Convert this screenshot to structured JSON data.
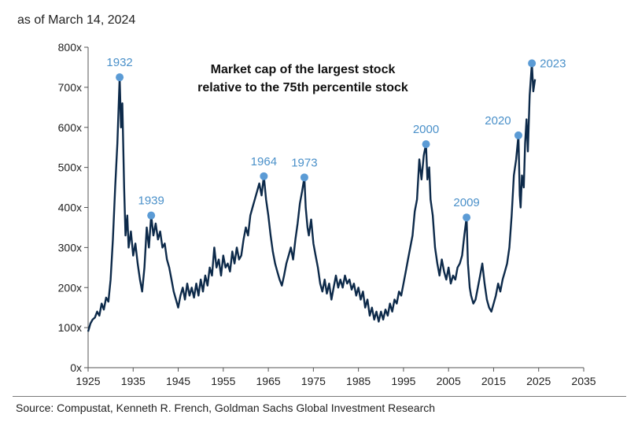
{
  "header": {
    "subtitle": "as of March 14, 2024"
  },
  "footer": {
    "source": "Source: Compustat, Kenneth R. French, Goldman Sachs Global Investment Research"
  },
  "colors": {
    "line": "#0d2a4a",
    "marker": "#5b9bd5",
    "label": "#4a90c9"
  },
  "chart_data": {
    "type": "line",
    "title": [
      "Market cap of the largest stock",
      "relative to the 75th percentile stock"
    ],
    "xlabel": "",
    "ylabel": "",
    "xlim": [
      1925,
      2035
    ],
    "ylim": [
      0,
      800
    ],
    "x_ticks": [
      1925,
      1935,
      1945,
      1955,
      1965,
      1975,
      1985,
      1995,
      2005,
      2015,
      2025,
      2035
    ],
    "y_ticks": [
      {
        "value": 0,
        "label": "0x"
      },
      {
        "value": 100,
        "label": "100x"
      },
      {
        "value": 200,
        "label": "200x"
      },
      {
        "value": 300,
        "label": "300x"
      },
      {
        "value": 400,
        "label": "400x"
      },
      {
        "value": 500,
        "label": "500x"
      },
      {
        "value": 600,
        "label": "600x"
      },
      {
        "value": 700,
        "label": "700x"
      },
      {
        "value": 800,
        "label": "800x"
      }
    ],
    "grid": false,
    "peaks": [
      {
        "label": "1932",
        "x": 1932,
        "y": 725
      },
      {
        "label": "1939",
        "x": 1939,
        "y": 380
      },
      {
        "label": "1964",
        "x": 1964,
        "y": 478
      },
      {
        "label": "1973",
        "x": 1973,
        "y": 475
      },
      {
        "label": "2000",
        "x": 2000,
        "y": 558
      },
      {
        "label": "2009",
        "x": 2009,
        "y": 375
      },
      {
        "label": "2020",
        "x": 2020.5,
        "y": 580
      },
      {
        "label": "2023",
        "x": 2023.5,
        "y": 760
      }
    ],
    "series": [
      {
        "values": [
          [
            1925,
            90
          ],
          [
            1925.5,
            110
          ],
          [
            1926,
            120
          ],
          [
            1926.5,
            125
          ],
          [
            1927,
            140
          ],
          [
            1927.5,
            130
          ],
          [
            1928,
            160
          ],
          [
            1928.5,
            145
          ],
          [
            1929,
            175
          ],
          [
            1929.5,
            165
          ],
          [
            1930,
            220
          ],
          [
            1930.5,
            320
          ],
          [
            1931,
            450
          ],
          [
            1931.5,
            560
          ],
          [
            1932,
            725
          ],
          [
            1932.3,
            600
          ],
          [
            1932.6,
            660
          ],
          [
            1933,
            450
          ],
          [
            1933.3,
            330
          ],
          [
            1933.7,
            380
          ],
          [
            1934,
            300
          ],
          [
            1934.5,
            340
          ],
          [
            1935,
            280
          ],
          [
            1935.5,
            310
          ],
          [
            1936,
            260
          ],
          [
            1936.5,
            220
          ],
          [
            1937,
            190
          ],
          [
            1937.5,
            250
          ],
          [
            1938,
            350
          ],
          [
            1938.5,
            300
          ],
          [
            1939,
            380
          ],
          [
            1939.5,
            330
          ],
          [
            1940,
            360
          ],
          [
            1940.5,
            320
          ],
          [
            1941,
            340
          ],
          [
            1941.5,
            300
          ],
          [
            1942,
            310
          ],
          [
            1942.5,
            270
          ],
          [
            1943,
            250
          ],
          [
            1943.5,
            220
          ],
          [
            1944,
            190
          ],
          [
            1944.5,
            170
          ],
          [
            1945,
            150
          ],
          [
            1945.5,
            180
          ],
          [
            1946,
            200
          ],
          [
            1946.5,
            170
          ],
          [
            1947,
            210
          ],
          [
            1947.5,
            180
          ],
          [
            1948,
            200
          ],
          [
            1948.5,
            175
          ],
          [
            1949,
            210
          ],
          [
            1949.5,
            180
          ],
          [
            1950,
            220
          ],
          [
            1950.5,
            190
          ],
          [
            1951,
            230
          ],
          [
            1951.5,
            205
          ],
          [
            1952,
            250
          ],
          [
            1952.5,
            230
          ],
          [
            1953,
            300
          ],
          [
            1953.5,
            250
          ],
          [
            1954,
            270
          ],
          [
            1954.5,
            230
          ],
          [
            1955,
            280
          ],
          [
            1955.5,
            250
          ],
          [
            1956,
            260
          ],
          [
            1956.5,
            240
          ],
          [
            1957,
            290
          ],
          [
            1957.5,
            260
          ],
          [
            1958,
            300
          ],
          [
            1958.5,
            270
          ],
          [
            1959,
            280
          ],
          [
            1959.5,
            320
          ],
          [
            1960,
            350
          ],
          [
            1960.5,
            330
          ],
          [
            1961,
            380
          ],
          [
            1961.5,
            400
          ],
          [
            1962,
            420
          ],
          [
            1962.5,
            440
          ],
          [
            1963,
            460
          ],
          [
            1963.5,
            430
          ],
          [
            1964,
            478
          ],
          [
            1964.5,
            420
          ],
          [
            1965,
            380
          ],
          [
            1965.5,
            330
          ],
          [
            1966,
            290
          ],
          [
            1966.5,
            260
          ],
          [
            1967,
            240
          ],
          [
            1967.5,
            220
          ],
          [
            1968,
            205
          ],
          [
            1968.5,
            230
          ],
          [
            1969,
            260
          ],
          [
            1969.5,
            280
          ],
          [
            1970,
            300
          ],
          [
            1970.5,
            270
          ],
          [
            1971,
            320
          ],
          [
            1971.5,
            360
          ],
          [
            1972,
            410
          ],
          [
            1972.5,
            440
          ],
          [
            1973,
            475
          ],
          [
            1973.3,
            400
          ],
          [
            1973.7,
            350
          ],
          [
            1974,
            330
          ],
          [
            1974.5,
            370
          ],
          [
            1975,
            310
          ],
          [
            1975.5,
            280
          ],
          [
            1976,
            250
          ],
          [
            1976.5,
            210
          ],
          [
            1977,
            190
          ],
          [
            1977.5,
            220
          ],
          [
            1978,
            185
          ],
          [
            1978.5,
            210
          ],
          [
            1979,
            170
          ],
          [
            1979.5,
            200
          ],
          [
            1980,
            230
          ],
          [
            1980.5,
            200
          ],
          [
            1981,
            220
          ],
          [
            1981.5,
            200
          ],
          [
            1982,
            230
          ],
          [
            1982.5,
            210
          ],
          [
            1983,
            220
          ],
          [
            1983.5,
            195
          ],
          [
            1984,
            210
          ],
          [
            1984.5,
            180
          ],
          [
            1985,
            200
          ],
          [
            1985.5,
            170
          ],
          [
            1986,
            190
          ],
          [
            1986.5,
            150
          ],
          [
            1987,
            170
          ],
          [
            1987.5,
            130
          ],
          [
            1988,
            150
          ],
          [
            1988.5,
            120
          ],
          [
            1989,
            140
          ],
          [
            1989.5,
            115
          ],
          [
            1990,
            140
          ],
          [
            1990.5,
            120
          ],
          [
            1991,
            145
          ],
          [
            1991.5,
            130
          ],
          [
            1992,
            160
          ],
          [
            1992.5,
            140
          ],
          [
            1993,
            170
          ],
          [
            1993.5,
            160
          ],
          [
            1994,
            190
          ],
          [
            1994.5,
            180
          ],
          [
            1995,
            210
          ],
          [
            1995.5,
            240
          ],
          [
            1996,
            270
          ],
          [
            1996.5,
            300
          ],
          [
            1997,
            330
          ],
          [
            1997.5,
            390
          ],
          [
            1998,
            420
          ],
          [
            1998.5,
            520
          ],
          [
            1999,
            470
          ],
          [
            1999.5,
            530
          ],
          [
            2000,
            558
          ],
          [
            2000.3,
            470
          ],
          [
            2000.7,
            500
          ],
          [
            2001,
            420
          ],
          [
            2001.5,
            380
          ],
          [
            2002,
            300
          ],
          [
            2002.5,
            260
          ],
          [
            2003,
            230
          ],
          [
            2003.5,
            270
          ],
          [
            2004,
            240
          ],
          [
            2004.5,
            220
          ],
          [
            2005,
            250
          ],
          [
            2005.5,
            210
          ],
          [
            2006,
            230
          ],
          [
            2006.5,
            220
          ],
          [
            2007,
            250
          ],
          [
            2007.5,
            260
          ],
          [
            2008,
            280
          ],
          [
            2008.5,
            330
          ],
          [
            2009,
            375
          ],
          [
            2009.3,
            260
          ],
          [
            2009.7,
            200
          ],
          [
            2010,
            180
          ],
          [
            2010.5,
            160
          ],
          [
            2011,
            170
          ],
          [
            2011.5,
            200
          ],
          [
            2012,
            230
          ],
          [
            2012.5,
            260
          ],
          [
            2013,
            210
          ],
          [
            2013.5,
            170
          ],
          [
            2014,
            150
          ],
          [
            2014.5,
            140
          ],
          [
            2015,
            160
          ],
          [
            2015.5,
            180
          ],
          [
            2016,
            210
          ],
          [
            2016.5,
            190
          ],
          [
            2017,
            220
          ],
          [
            2017.5,
            240
          ],
          [
            2018,
            260
          ],
          [
            2018.5,
            300
          ],
          [
            2019,
            380
          ],
          [
            2019.5,
            480
          ],
          [
            2020,
            520
          ],
          [
            2020.5,
            580
          ],
          [
            2020.8,
            430
          ],
          [
            2021,
            400
          ],
          [
            2021.3,
            480
          ],
          [
            2021.7,
            450
          ],
          [
            2022,
            560
          ],
          [
            2022.3,
            620
          ],
          [
            2022.6,
            540
          ],
          [
            2023,
            680
          ],
          [
            2023.5,
            760
          ],
          [
            2023.8,
            690
          ],
          [
            2024.2,
            720
          ]
        ]
      }
    ]
  }
}
